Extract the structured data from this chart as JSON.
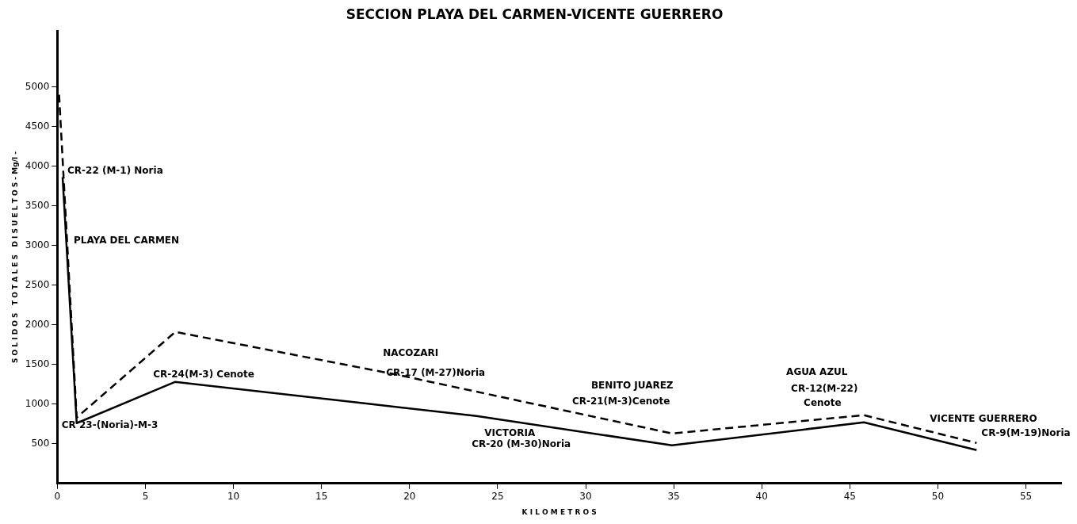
{
  "chart_data": {
    "type": "line",
    "title": "SECCION PLAYA DEL CARMEN-VICENTE GUERRERO",
    "xlabel": "K I L O M E T R O S",
    "ylabel": "S O L I D O S   T O T A L E S   D I S U E L T O S - Mg/l -",
    "series": [
      {
        "color": "#000000",
        "line_style": "solid",
        "x": [
          0.3,
          1.1,
          6.7,
          23.8,
          34.9,
          45.8,
          52.2
        ],
        "values": [
          3860,
          760,
          1280,
          850,
          480,
          770,
          420
        ]
      },
      {
        "color": "#000000",
        "line_style": "dashed",
        "x": [
          0.1,
          1.1,
          6.7,
          19.3,
          34.9,
          45.8,
          52.2
        ],
        "values": [
          4900,
          830,
          1910,
          1370,
          630,
          860,
          510
        ]
      }
    ],
    "xlim": [
      0,
      57
    ],
    "xticks": [
      0,
      5,
      10,
      15,
      20,
      25,
      30,
      35,
      40,
      45,
      50,
      55
    ],
    "ylim": [
      0,
      5700
    ],
    "yticks": [
      500,
      1000,
      1500,
      2000,
      2500,
      3000,
      3500,
      4000,
      4500,
      5000
    ],
    "grid": false,
    "legend": false,
    "marker": "none",
    "annotations": [
      {
        "text": "CR-22 (M-1) Noria",
        "x": 0.3,
        "y": 3860
      },
      "PLAYA DEL CARMEN",
      {
        "text": "CR 23-(Noria)-M-3",
        "x": 1.1,
        "y": 760
      },
      {
        "text": "CR-24(M-3) Cenote",
        "x": 6.7,
        "y": 1280
      },
      {
        "text": "NACOZARI",
        "x": 19.3,
        "y": 1370
      },
      {
        "text": "CR-17 (M-27)Noria",
        "x": 19.3,
        "y": 1370
      },
      {
        "text": "VICTORIA",
        "x": 23.8,
        "y": 850
      },
      {
        "text": "CR-20 (M-30)Noria",
        "x": 23.8,
        "y": 850
      },
      {
        "text": "CR-21(M-3)Cenote",
        "x": 34.9,
        "y": 630
      },
      "BENITO JUAREZ",
      {
        "text": "CR-12(M-22)",
        "x": 45.8,
        "y": 860
      },
      "AGUA AZUL",
      {
        "text": "Cenote",
        "x": 45.8,
        "y": 860
      },
      {
        "text": "VICENTE GUERRERO",
        "x": 52.2,
        "y": 510
      },
      {
        "text": "CR-9(M-19)Noria",
        "x": 52.2,
        "y": 510
      }
    ]
  }
}
